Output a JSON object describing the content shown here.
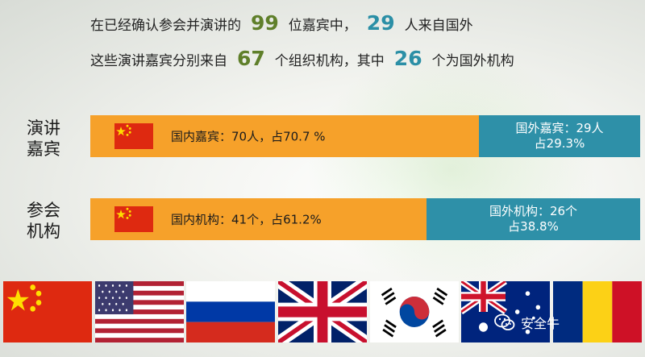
{
  "header": {
    "line1": {
      "pre": "在已经确认参会并演讲的",
      "n1": "99",
      "mid": "位嘉宾中，",
      "n2": "29",
      "post": "人来自国外"
    },
    "line2": {
      "pre": "这些演讲嘉宾分别来自",
      "n1": "67",
      "mid": "个组织机构，其中",
      "n2": "26",
      "post": "个为国外机构"
    }
  },
  "chart_data": {
    "type": "bar",
    "orientation": "horizontal-stacked-100",
    "categories": [
      "演讲嘉宾",
      "参会机构"
    ],
    "series": [
      {
        "name": "国内",
        "values": [
          70.7,
          61.2
        ],
        "counts": [
          70,
          41
        ],
        "color": "#f6a12a",
        "labels": [
          "国内嘉宾：70人，占70.7 %",
          "国内机构：41个，占61.2%"
        ]
      },
      {
        "name": "国外",
        "values": [
          29.3,
          38.8
        ],
        "counts": [
          29,
          26
        ],
        "color": "#2e90a8",
        "labels_line1": [
          "国外嘉宾：29人",
          "国外机构：26个"
        ],
        "labels_line2": [
          "占29.3%",
          "占38.8%"
        ]
      }
    ],
    "xlim": [
      0,
      100
    ],
    "legend": "none",
    "grid": false
  },
  "row_labels": {
    "r1": {
      "line1": "演讲",
      "line2": "嘉宾"
    },
    "r2": {
      "line1": "参会",
      "line2": "机构"
    }
  },
  "flags": [
    "china-flag",
    "usa-flag",
    "russia-flag",
    "uk-flag",
    "south-korea-flag",
    "australia-flag",
    "romania-flag"
  ],
  "watermark": {
    "text": "安全牛",
    "icon": "wechat-icon"
  },
  "colors": {
    "domestic": "#f6a12a",
    "foreign": "#2e90a8",
    "green_number": "#5f7f2a",
    "teal_number": "#2b8fa6"
  }
}
